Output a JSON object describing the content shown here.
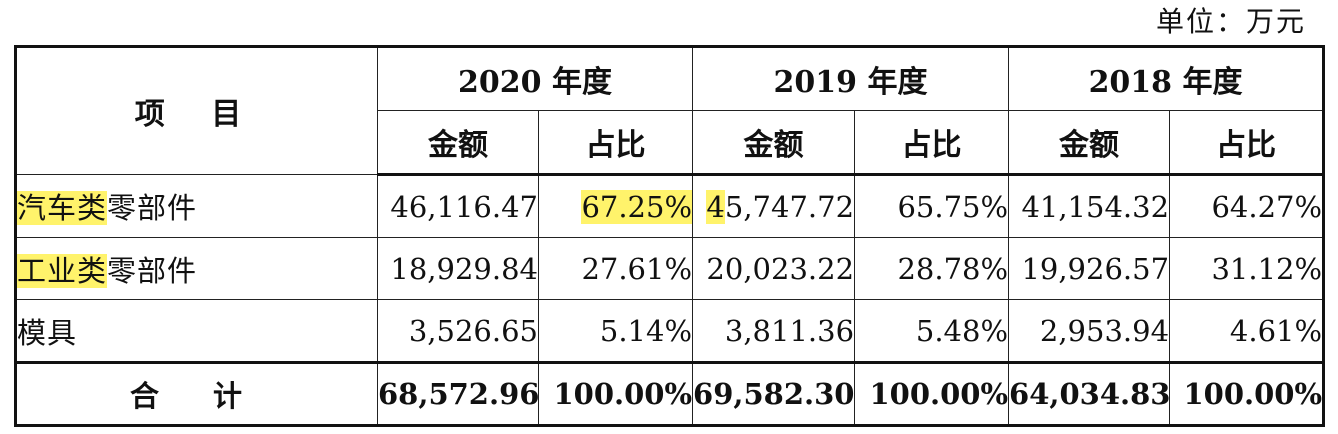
{
  "unit_label": "单位：万元",
  "header": {
    "item_label": "项 目",
    "years": [
      "2020 年度",
      "2019 年度",
      "2018 年度"
    ],
    "amount_label": "金额",
    "ratio_label": "占比"
  },
  "rows": [
    {
      "label_highlight": "汽车类",
      "label_rest": "零部件",
      "y2020_amount": "46,116.47",
      "y2020_ratio": "67.25%",
      "y2019_amount_lead": "4",
      "y2019_amount_rest": "5,747.72",
      "y2019_ratio": "65.75%",
      "y2018_amount": "41,154.32",
      "y2018_ratio": "64.27%"
    },
    {
      "label_highlight": "工业类",
      "label_rest": "零部件",
      "y2020_amount": "18,929.84",
      "y2020_ratio": "27.61%",
      "y2019_amount": "20,023.22",
      "y2019_ratio": "28.78%",
      "y2018_amount": "19,926.57",
      "y2018_ratio": "31.12%"
    },
    {
      "label": "模具",
      "y2020_amount": "3,526.65",
      "y2020_ratio": "5.14%",
      "y2019_amount": "3,811.36",
      "y2019_ratio": "5.48%",
      "y2018_amount": "2,953.94",
      "y2018_ratio": "4.61%"
    }
  ],
  "total": {
    "label": "合 计",
    "y2020_amount": "68,572.96",
    "y2020_ratio": "100.00%",
    "y2019_amount": "69,582.30",
    "y2019_ratio": "100.00%",
    "y2018_amount": "64,034.83",
    "y2018_ratio": "100.00%"
  },
  "colors": {
    "highlight": "#fff36b",
    "border": "#111111"
  }
}
